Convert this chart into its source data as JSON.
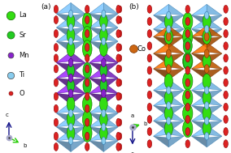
{
  "background_color": "#ffffff",
  "panel_a_label": "(a)",
  "panel_b_label": "(b)",
  "legend_items": [
    {
      "label": "La",
      "color": "#33dd11",
      "size": 7.5
    },
    {
      "label": "Sr",
      "color": "#22cc22",
      "size": 6.5
    },
    {
      "label": "Mn",
      "color": "#8822cc",
      "size": 5
    },
    {
      "label": "Ti",
      "color": "#88ccee",
      "size": 6
    },
    {
      "label": "O",
      "color": "#dd2222",
      "size": 3.5
    }
  ],
  "co_legend": {
    "label": "Co",
    "color": "#cc6611",
    "size": 5
  },
  "mn_oct_color": "#7722bb",
  "mn_oct_edge": "#440088",
  "co_oct_color": "#bb5500",
  "co_oct_edge": "#773300",
  "ti_oct_color": "#66aadd",
  "ti_oct_edge": "#3377aa",
  "la_color": "#33dd11",
  "la_edge": "#116600",
  "sr_color": "#22cc22",
  "sr_edge": "#116600",
  "o_color": "#dd2222",
  "o_edge": "#880000",
  "mn_color": "#8822cc",
  "mn_edge": "#440066",
  "co_color": "#cc6611",
  "co_edge": "#773300",
  "ti_color": "#88ccee",
  "ti_edge": "#3377aa",
  "dark_arrow": "#111188",
  "green_arrow": "#22cc00"
}
